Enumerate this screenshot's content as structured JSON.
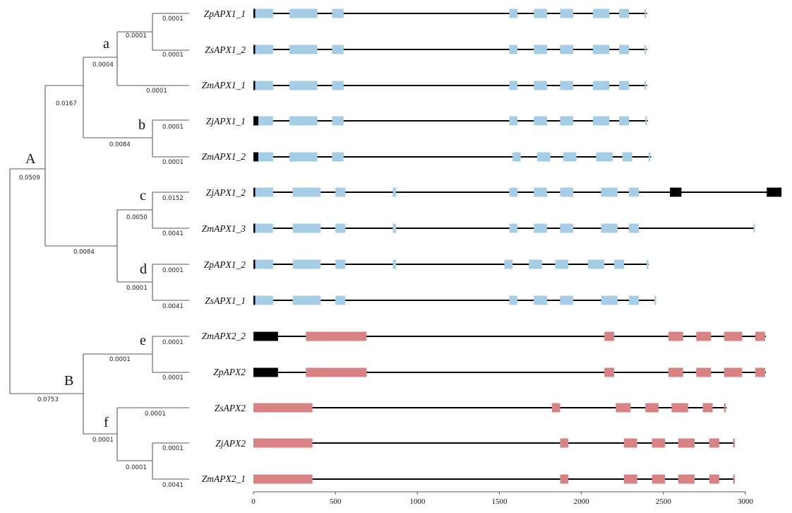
{
  "colors": {
    "apx1_exon": "#a6cde6",
    "apx2_exon": "#d98283",
    "utr": "#000000",
    "intron_line": "#000000",
    "branch": "#5a5a5a"
  },
  "clades": [
    "A",
    "B",
    "a",
    "b",
    "c",
    "d",
    "e",
    "f"
  ],
  "branch_lengths": {
    "A": "0.0509",
    "B": "0.0753",
    "A_upper": "0.0167",
    "A_lower": "0.0084",
    "a_node": "0.0004",
    "a_inner": "0.0001",
    "ZmAPX1_1": "0.0001",
    "ZpAPX1_1": "0.0001",
    "ZsAPX1_2": "0.0001",
    "b_node": "0.0084",
    "ZjAPX1_1": "0.0001",
    "ZmAPX1_2": "0.0001",
    "cd_node": "0.0050",
    "ZjAPX1_2": "0.0152",
    "ZmAPX1_3": "0.0041",
    "d_node": "0.0001",
    "ZpAPX1_2": "0.0001",
    "ZsAPX1_1": "0.0041",
    "e_node": "0.0001",
    "ZmAPX2_2": "0.0001",
    "ZpAPX2": "0.0001",
    "f_node": "0.0001",
    "ZsAPX2": "0.0001",
    "f_inner": "0.0001",
    "ZjAPX2": "0.0001",
    "ZmAPX2_1": "0.0041"
  },
  "axis": {
    "min": 0,
    "max": 3000,
    "ticks": [
      "0",
      "500",
      "1000",
      "1500",
      "2000",
      "2500",
      "3000"
    ]
  },
  "genes": [
    {
      "name": "ZpAPX1_1",
      "family": "APX1",
      "length": 2400,
      "utr": [
        [
          0,
          10
        ]
      ],
      "exons": [
        [
          10,
          120
        ],
        [
          220,
          390
        ],
        [
          480,
          550
        ],
        [
          1560,
          1610
        ],
        [
          1710,
          1790
        ],
        [
          1870,
          1950
        ],
        [
          2070,
          2170
        ],
        [
          2230,
          2290
        ],
        [
          2385,
          2395
        ]
      ]
    },
    {
      "name": "ZsAPX1_2",
      "family": "APX1",
      "length": 2400,
      "utr": [
        [
          0,
          10
        ]
      ],
      "exons": [
        [
          10,
          120
        ],
        [
          220,
          390
        ],
        [
          480,
          550
        ],
        [
          1560,
          1610
        ],
        [
          1710,
          1790
        ],
        [
          1870,
          1950
        ],
        [
          2070,
          2170
        ],
        [
          2230,
          2290
        ],
        [
          2385,
          2395
        ]
      ]
    },
    {
      "name": "ZmAPX1_1",
      "family": "APX1",
      "length": 2400,
      "utr": [
        [
          0,
          10
        ]
      ],
      "exons": [
        [
          10,
          120
        ],
        [
          220,
          390
        ],
        [
          480,
          550
        ],
        [
          1560,
          1610
        ],
        [
          1710,
          1790
        ],
        [
          1870,
          1950
        ],
        [
          2070,
          2170
        ],
        [
          2230,
          2290
        ],
        [
          2385,
          2395
        ]
      ]
    },
    {
      "name": "ZjAPX1_1",
      "family": "APX1",
      "length": 2405,
      "utr": [
        [
          0,
          30
        ]
      ],
      "exons": [
        [
          30,
          120
        ],
        [
          220,
          390
        ],
        [
          480,
          550
        ],
        [
          1560,
          1610
        ],
        [
          1710,
          1790
        ],
        [
          1870,
          1950
        ],
        [
          2070,
          2170
        ],
        [
          2230,
          2290
        ],
        [
          2390,
          2400
        ]
      ]
    },
    {
      "name": "ZmAPX1_2",
      "family": "APX1",
      "length": 2425,
      "utr": [
        [
          0,
          30
        ]
      ],
      "exons": [
        [
          30,
          120
        ],
        [
          220,
          390
        ],
        [
          480,
          550
        ],
        [
          1580,
          1630
        ],
        [
          1730,
          1810
        ],
        [
          1890,
          1970
        ],
        [
          2090,
          2190
        ],
        [
          2250,
          2310
        ],
        [
          2410,
          2420
        ]
      ]
    },
    {
      "name": "ZjAPX1_2",
      "family": "APX1",
      "length": 3220,
      "utr": [
        [
          0,
          10
        ],
        [
          2540,
          2610
        ],
        [
          3130,
          3220
        ]
      ],
      "exons": [
        [
          10,
          120
        ],
        [
          240,
          410
        ],
        [
          500,
          560
        ],
        [
          850,
          870
        ],
        [
          1560,
          1610
        ],
        [
          1710,
          1790
        ],
        [
          1870,
          1950
        ],
        [
          2120,
          2220
        ],
        [
          2290,
          2350
        ]
      ]
    },
    {
      "name": "ZmAPX1_3",
      "family": "APX1",
      "length": 3055,
      "utr": [
        [
          0,
          10
        ]
      ],
      "exons": [
        [
          10,
          120
        ],
        [
          240,
          410
        ],
        [
          500,
          560
        ],
        [
          850,
          870
        ],
        [
          1560,
          1610
        ],
        [
          1710,
          1790
        ],
        [
          1870,
          1950
        ],
        [
          2120,
          2220
        ],
        [
          2290,
          2350
        ],
        [
          3050,
          3058
        ]
      ]
    },
    {
      "name": "ZpAPX1_2",
      "family": "APX1",
      "length": 2410,
      "utr": [
        [
          0,
          10
        ]
      ],
      "exons": [
        [
          10,
          120
        ],
        [
          240,
          410
        ],
        [
          500,
          560
        ],
        [
          850,
          870
        ],
        [
          1530,
          1580
        ],
        [
          1680,
          1760
        ],
        [
          1840,
          1920
        ],
        [
          2040,
          2140
        ],
        [
          2200,
          2260
        ],
        [
          2398,
          2408
        ]
      ]
    },
    {
      "name": "ZsAPX1_1",
      "family": "APX1",
      "length": 2455,
      "utr": [
        [
          0,
          10
        ]
      ],
      "exons": [
        [
          10,
          120
        ],
        [
          240,
          410
        ],
        [
          500,
          560
        ],
        [
          1560,
          1610
        ],
        [
          1710,
          1790
        ],
        [
          1870,
          1950
        ],
        [
          2120,
          2220
        ],
        [
          2290,
          2350
        ],
        [
          2445,
          2455
        ]
      ]
    },
    {
      "name": "ZmAPX2_2",
      "family": "APX2",
      "length": 3125,
      "utr": [
        [
          0,
          150
        ]
      ],
      "exons": [
        [
          320,
          690
        ],
        [
          2140,
          2200
        ],
        [
          2530,
          2620
        ],
        [
          2700,
          2790
        ],
        [
          2870,
          2980
        ],
        [
          3060,
          3120
        ]
      ]
    },
    {
      "name": "ZpAPX2",
      "family": "APX2",
      "length": 3125,
      "utr": [
        [
          0,
          150
        ]
      ],
      "exons": [
        [
          320,
          690
        ],
        [
          2140,
          2200
        ],
        [
          2530,
          2620
        ],
        [
          2700,
          2790
        ],
        [
          2870,
          2980
        ],
        [
          3060,
          3120
        ]
      ]
    },
    {
      "name": "ZsAPX2",
      "family": "APX2",
      "length": 2885,
      "utr": [],
      "exons": [
        [
          0,
          360
        ],
        [
          1820,
          1870
        ],
        [
          2210,
          2300
        ],
        [
          2390,
          2470
        ],
        [
          2550,
          2650
        ],
        [
          2740,
          2800
        ],
        [
          2870,
          2880
        ]
      ]
    },
    {
      "name": "ZjAPX2",
      "family": "APX2",
      "length": 2935,
      "utr": [],
      "exons": [
        [
          0,
          360
        ],
        [
          1870,
          1920
        ],
        [
          2260,
          2340
        ],
        [
          2430,
          2510
        ],
        [
          2590,
          2690
        ],
        [
          2780,
          2840
        ],
        [
          2925,
          2935
        ]
      ]
    },
    {
      "name": "ZmAPX2_1",
      "family": "APX2",
      "length": 2935,
      "utr": [],
      "exons": [
        [
          0,
          360
        ],
        [
          1870,
          1920
        ],
        [
          2260,
          2340
        ],
        [
          2430,
          2510
        ],
        [
          2590,
          2690
        ],
        [
          2780,
          2840
        ],
        [
          2925,
          2935
        ]
      ]
    }
  ]
}
